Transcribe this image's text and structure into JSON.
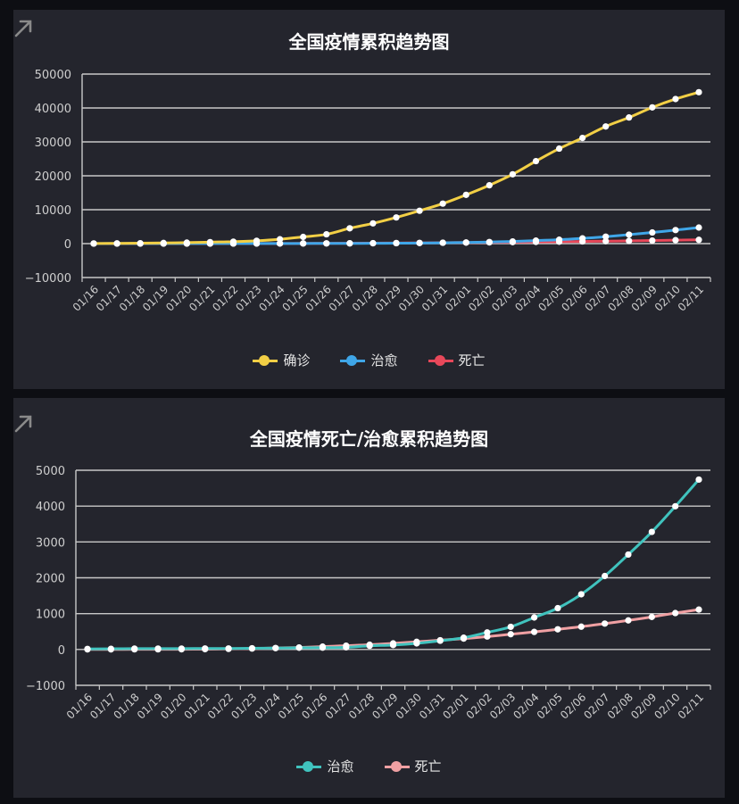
{
  "chart_data": [
    {
      "type": "line",
      "title": "全国疫情累积趋势图",
      "categories": [
        "01/16",
        "01/17",
        "01/18",
        "01/19",
        "01/20",
        "01/21",
        "01/22",
        "01/23",
        "01/24",
        "01/25",
        "01/26",
        "01/27",
        "01/28",
        "01/29",
        "01/30",
        "01/31",
        "02/01",
        "02/02",
        "02/03",
        "02/04",
        "02/05",
        "02/06",
        "02/07",
        "02/08",
        "02/09",
        "02/10",
        "02/11"
      ],
      "ylim": [
        -10000,
        50000
      ],
      "yticks": [
        50000,
        40000,
        30000,
        20000,
        10000,
        0,
        -10000
      ],
      "grid": true,
      "legend_position": "bottom",
      "series": [
        {
          "name": "确诊",
          "color": "#f2cf45",
          "values": [
            45,
            62,
            121,
            198,
            291,
            440,
            571,
            830,
            1287,
            1975,
            2744,
            4515,
            5974,
            7711,
            9692,
            11791,
            14380,
            17205,
            20438,
            24324,
            28018,
            31161,
            34546,
            37198,
            40171,
            42638,
            44653
          ]
        },
        {
          "name": "治愈",
          "color": "#3fa6e8",
          "values": [
            15,
            19,
            25,
            25,
            25,
            28,
            28,
            34,
            38,
            49,
            51,
            60,
            103,
            124,
            171,
            243,
            328,
            475,
            632,
            892,
            1153,
            1540,
            2050,
            2649,
            3281,
            3996,
            4740
          ]
        },
        {
          "name": "死亡",
          "color": "#e8485a",
          "values": [
            2,
            3,
            4,
            4,
            6,
            9,
            17,
            25,
            41,
            56,
            80,
            106,
            132,
            170,
            213,
            259,
            304,
            361,
            425,
            490,
            563,
            636,
            722,
            811,
            908,
            1016,
            1113
          ]
        }
      ]
    },
    {
      "type": "line",
      "title": "全国疫情死亡/治愈累积趋势图",
      "categories": [
        "01/16",
        "01/17",
        "01/18",
        "01/19",
        "01/20",
        "01/21",
        "01/22",
        "01/23",
        "01/24",
        "01/25",
        "01/26",
        "01/27",
        "01/28",
        "01/29",
        "01/30",
        "01/31",
        "02/01",
        "02/02",
        "02/03",
        "02/04",
        "02/05",
        "02/06",
        "02/07",
        "02/08",
        "02/09",
        "02/10",
        "02/11"
      ],
      "ylim": [
        -1000,
        5000
      ],
      "yticks": [
        5000,
        4000,
        3000,
        2000,
        1000,
        0,
        -1000
      ],
      "grid": true,
      "legend_position": "bottom",
      "series": [
        {
          "name": "治愈",
          "color": "#40c3be",
          "values": [
            15,
            19,
            25,
            25,
            25,
            28,
            28,
            34,
            38,
            49,
            51,
            60,
            103,
            124,
            171,
            243,
            328,
            475,
            632,
            892,
            1153,
            1540,
            2050,
            2649,
            3281,
            3996,
            4740
          ]
        },
        {
          "name": "死亡",
          "color": "#f0a0a3",
          "values": [
            2,
            3,
            4,
            4,
            6,
            9,
            17,
            25,
            41,
            56,
            80,
            106,
            132,
            170,
            213,
            259,
            304,
            361,
            425,
            490,
            563,
            636,
            722,
            811,
            908,
            1016,
            1113
          ]
        }
      ]
    }
  ]
}
